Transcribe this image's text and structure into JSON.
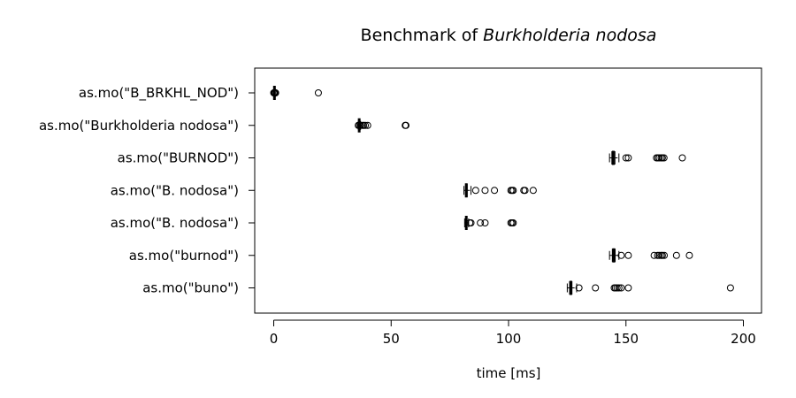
{
  "chart_data": {
    "type": "boxplot",
    "orientation": "horizontal",
    "title_prefix": "Benchmark of ",
    "title_italic": "Burkholderia nodosa",
    "xlabel": "time [ms]",
    "xlim": [
      0,
      200
    ],
    "xticks": [
      0,
      50,
      100,
      150,
      200
    ],
    "grid": false,
    "series": [
      {
        "name": "as.mo(\"B_BRKHL_NOD\")",
        "min": 0.1,
        "q1": 0.2,
        "median": 0.3,
        "q3": 0.4,
        "max": 0.6,
        "outliers": [
          0.0,
          0.2,
          0.4,
          0.6,
          0.8,
          19.0
        ]
      },
      {
        "name": "as.mo(\"Burkholderia nodosa\")",
        "min": 36.0,
        "q1": 36.2,
        "median": 36.4,
        "q3": 36.7,
        "max": 37.0,
        "outliers": [
          36.0,
          36.5,
          37.0,
          37.8,
          38.3,
          39.0,
          40.0,
          56.0,
          56.3
        ]
      },
      {
        "name": "as.mo(\"BURNOD\")",
        "min": 143.0,
        "q1": 144.0,
        "median": 144.6,
        "q3": 145.3,
        "max": 147.0,
        "outliers": [
          150.0,
          151.0,
          163.0,
          163.6,
          164.2,
          165.0,
          165.5,
          166.2,
          174.0
        ]
      },
      {
        "name": "as.mo(\"B.  nodosa\")",
        "min": 81.0,
        "q1": 81.7,
        "median": 82.0,
        "q3": 82.4,
        "max": 84.0,
        "outliers": [
          86.0,
          90.0,
          94.0,
          101.0,
          101.5,
          102.0,
          106.5,
          107.0,
          110.5
        ]
      },
      {
        "name": "as.mo(\"B. nodosa\")",
        "min": 81.3,
        "q1": 81.8,
        "median": 82.0,
        "q3": 82.3,
        "max": 83.0,
        "outliers": [
          83.5,
          84.0,
          88.0,
          90.0,
          101.0,
          101.5,
          102.0
        ]
      },
      {
        "name": "as.mo(\"burnod\")",
        "min": 143.0,
        "q1": 144.2,
        "median": 144.8,
        "q3": 145.4,
        "max": 147.0,
        "outliers": [
          148.0,
          151.0,
          162.0,
          163.5,
          164.2,
          165.0,
          165.5,
          166.3,
          171.5,
          177.0
        ]
      },
      {
        "name": "as.mo(\"buno\")",
        "min": 125.0,
        "q1": 126.0,
        "median": 126.5,
        "q3": 127.0,
        "max": 129.0,
        "outliers": [
          130.0,
          137.0,
          145.0,
          145.5,
          146.2,
          147.0,
          148.0,
          151.0,
          194.5
        ]
      }
    ]
  }
}
